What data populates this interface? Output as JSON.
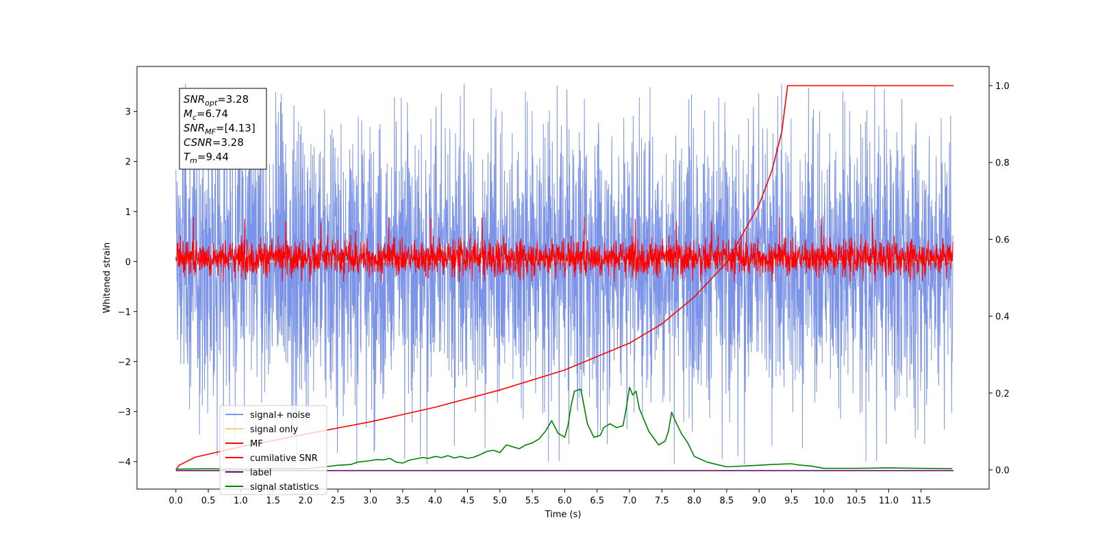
{
  "chart_data": {
    "type": "line",
    "title": "",
    "xlabel": "Time (s)",
    "ylabel": "Whitened strain",
    "xlim": [
      -0.6,
      12.55
    ],
    "ylim": [
      -4.55,
      3.9
    ],
    "y2lim": [
      -0.05,
      1.05
    ],
    "xticks": [
      "0.0",
      "0.5",
      "1.0",
      "1.5",
      "2.0",
      "2.5",
      "3.0",
      "3.5",
      "4.0",
      "4.5",
      "5.0",
      "5.5",
      "6.0",
      "6.5",
      "7.0",
      "7.5",
      "8.0",
      "8.5",
      "9.0",
      "9.5",
      "10.0",
      "10.5",
      "11.0",
      "11.5"
    ],
    "yticks": [
      "3",
      "2",
      "1",
      "0",
      "−1",
      "−2",
      "−3",
      "−4"
    ],
    "y2ticks": [
      "1.0",
      "0.8",
      "0.6",
      "0.4",
      "0.2",
      "0.0"
    ],
    "legend_position": "lower-left",
    "info_box": {
      "lines": [
        {
          "main": "SNR",
          "sub": "opt",
          "rest": "=3.28"
        },
        {
          "main": "M",
          "sub": "c",
          "rest": "=6.74"
        },
        {
          "main": "SNR",
          "sub": "MF",
          "rest": "=[4.13]"
        },
        {
          "main": "CSNR",
          "sub": "",
          "rest": "=3.28"
        },
        {
          "main": "T",
          "sub": "m",
          "rest": "=9.44"
        }
      ]
    },
    "series": [
      {
        "name": "signal+ noise",
        "color": "#7b93e8",
        "axis": "left",
        "kind": "noise",
        "x_range": [
          0.0,
          11.99
        ],
        "y_band": [
          -2.6,
          2.6
        ],
        "peak_y": 3.55,
        "min_y": -4.05
      },
      {
        "name": "signal only",
        "color": "#f5d27a",
        "axis": "left",
        "kind": "flat",
        "x_range": [
          0.0,
          11.99
        ],
        "y": 0.0
      },
      {
        "name": "MF",
        "color": "#ff0000",
        "axis": "left",
        "kind": "noise",
        "x_range": [
          0.0,
          11.99
        ],
        "y_band": [
          -0.38,
          0.55
        ],
        "peak_y": 0.9,
        "min_y": -0.4
      },
      {
        "name": "cumilative SNR",
        "color": "#ff0000",
        "axis": "right",
        "x": [
          0.0,
          0.05,
          0.3,
          1.0,
          2.0,
          3.0,
          4.0,
          5.0,
          6.0,
          7.0,
          7.5,
          8.0,
          8.5,
          9.0,
          9.2,
          9.35,
          9.44,
          12.0
        ],
        "y": [
          0.0,
          0.012,
          0.033,
          0.06,
          0.093,
          0.125,
          0.163,
          0.208,
          0.26,
          0.33,
          0.38,
          0.45,
          0.54,
          0.69,
          0.78,
          0.88,
          1.0,
          1.0
        ]
      },
      {
        "name": "label",
        "color": "#6a0f6a",
        "axis": "right",
        "x": [
          0.0,
          12.0
        ],
        "y": [
          -0.002,
          -0.002
        ]
      },
      {
        "name": "signal statistics",
        "color": "#008000",
        "axis": "right",
        "x": [
          0.0,
          0.5,
          1.0,
          1.5,
          2.0,
          2.3,
          2.5,
          2.7,
          2.8,
          3.0,
          3.1,
          3.2,
          3.3,
          3.4,
          3.5,
          3.6,
          3.8,
          3.9,
          4.0,
          4.1,
          4.2,
          4.3,
          4.4,
          4.5,
          4.6,
          4.7,
          4.8,
          4.9,
          5.0,
          5.1,
          5.2,
          5.3,
          5.4,
          5.5,
          5.6,
          5.7,
          5.8,
          5.9,
          6.0,
          6.05,
          6.1,
          6.15,
          6.25,
          6.35,
          6.45,
          6.55,
          6.6,
          6.7,
          6.8,
          6.9,
          6.95,
          7.0,
          7.05,
          7.1,
          7.15,
          7.3,
          7.45,
          7.55,
          7.6,
          7.65,
          7.7,
          7.8,
          7.9,
          8.0,
          8.2,
          8.5,
          9.0,
          9.2,
          9.5,
          9.6,
          9.8,
          10.0,
          10.5,
          11.0,
          11.5,
          11.98
        ],
        "y": [
          0.002,
          0.003,
          0.002,
          0.003,
          0.003,
          0.008,
          0.012,
          0.014,
          0.02,
          0.024,
          0.027,
          0.026,
          0.03,
          0.02,
          0.018,
          0.025,
          0.032,
          0.03,
          0.035,
          0.032,
          0.037,
          0.031,
          0.035,
          0.03,
          0.033,
          0.04,
          0.048,
          0.051,
          0.045,
          0.065,
          0.06,
          0.055,
          0.065,
          0.07,
          0.08,
          0.1,
          0.128,
          0.095,
          0.085,
          0.115,
          0.168,
          0.205,
          0.21,
          0.12,
          0.085,
          0.09,
          0.11,
          0.12,
          0.11,
          0.115,
          0.16,
          0.215,
          0.195,
          0.205,
          0.16,
          0.1,
          0.065,
          0.075,
          0.1,
          0.15,
          0.13,
          0.095,
          0.07,
          0.035,
          0.02,
          0.008,
          0.012,
          0.014,
          0.016,
          0.013,
          0.01,
          0.004,
          0.004,
          0.005,
          0.004,
          0.003
        ]
      }
    ]
  }
}
